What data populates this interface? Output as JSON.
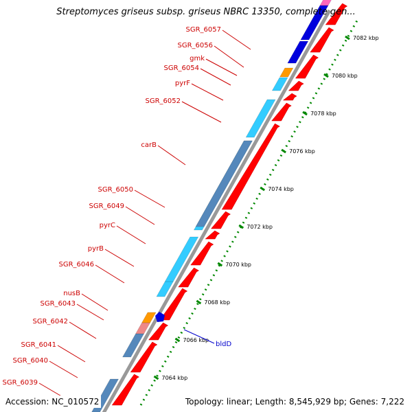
{
  "title": "Streptomyces griseus subsp. griseus NBRC 13350, complete gen...",
  "footer": {
    "accession": "Accession: NC_010572",
    "topology": "Topology: linear; Length: 8,545,929 bp; Genes: 7,222"
  },
  "colors": {
    "label": "#cc0000",
    "forward_gene": "#ff0000",
    "reverse_cyan": "#33ccff",
    "reverse_blue": "#0000dd",
    "steel": "#5588bb",
    "orange": "#ff9900",
    "pink": "#ee8888",
    "magenta": "#ff66bb",
    "backbone": "#999999",
    "ruler": "#008800",
    "bldD": "#0000cc"
  },
  "ruler": {
    "ticks": [
      {
        "label": "7082 kbp"
      },
      {
        "label": "7080 kbp"
      },
      {
        "label": "7078 kbp"
      },
      {
        "label": "7076 kbp"
      },
      {
        "label": "7074 kbp"
      },
      {
        "label": "7072 kbp"
      },
      {
        "label": "7070 kbp"
      },
      {
        "label": "7068 kbp"
      },
      {
        "label": "7066 kbp"
      },
      {
        "label": "7064 kbp"
      }
    ]
  },
  "gene_labels": [
    {
      "name": "SGR_6057"
    },
    {
      "name": "SGR_6056"
    },
    {
      "name": "gmk"
    },
    {
      "name": "SGR_6054"
    },
    {
      "name": "pyrF"
    },
    {
      "name": "SGR_6052"
    },
    {
      "name": "carB"
    },
    {
      "name": "SGR_6050"
    },
    {
      "name": "SGR_6049"
    },
    {
      "name": "pyrC"
    },
    {
      "name": "pyrB"
    },
    {
      "name": "SGR_6046"
    },
    {
      "name": "nusB"
    },
    {
      "name": "SGR_6043"
    },
    {
      "name": "SGR_6042"
    },
    {
      "name": "SGR_6041"
    },
    {
      "name": "SGR_6040"
    },
    {
      "name": "SGR_6039"
    }
  ],
  "feature_label": {
    "name": "bldD"
  }
}
